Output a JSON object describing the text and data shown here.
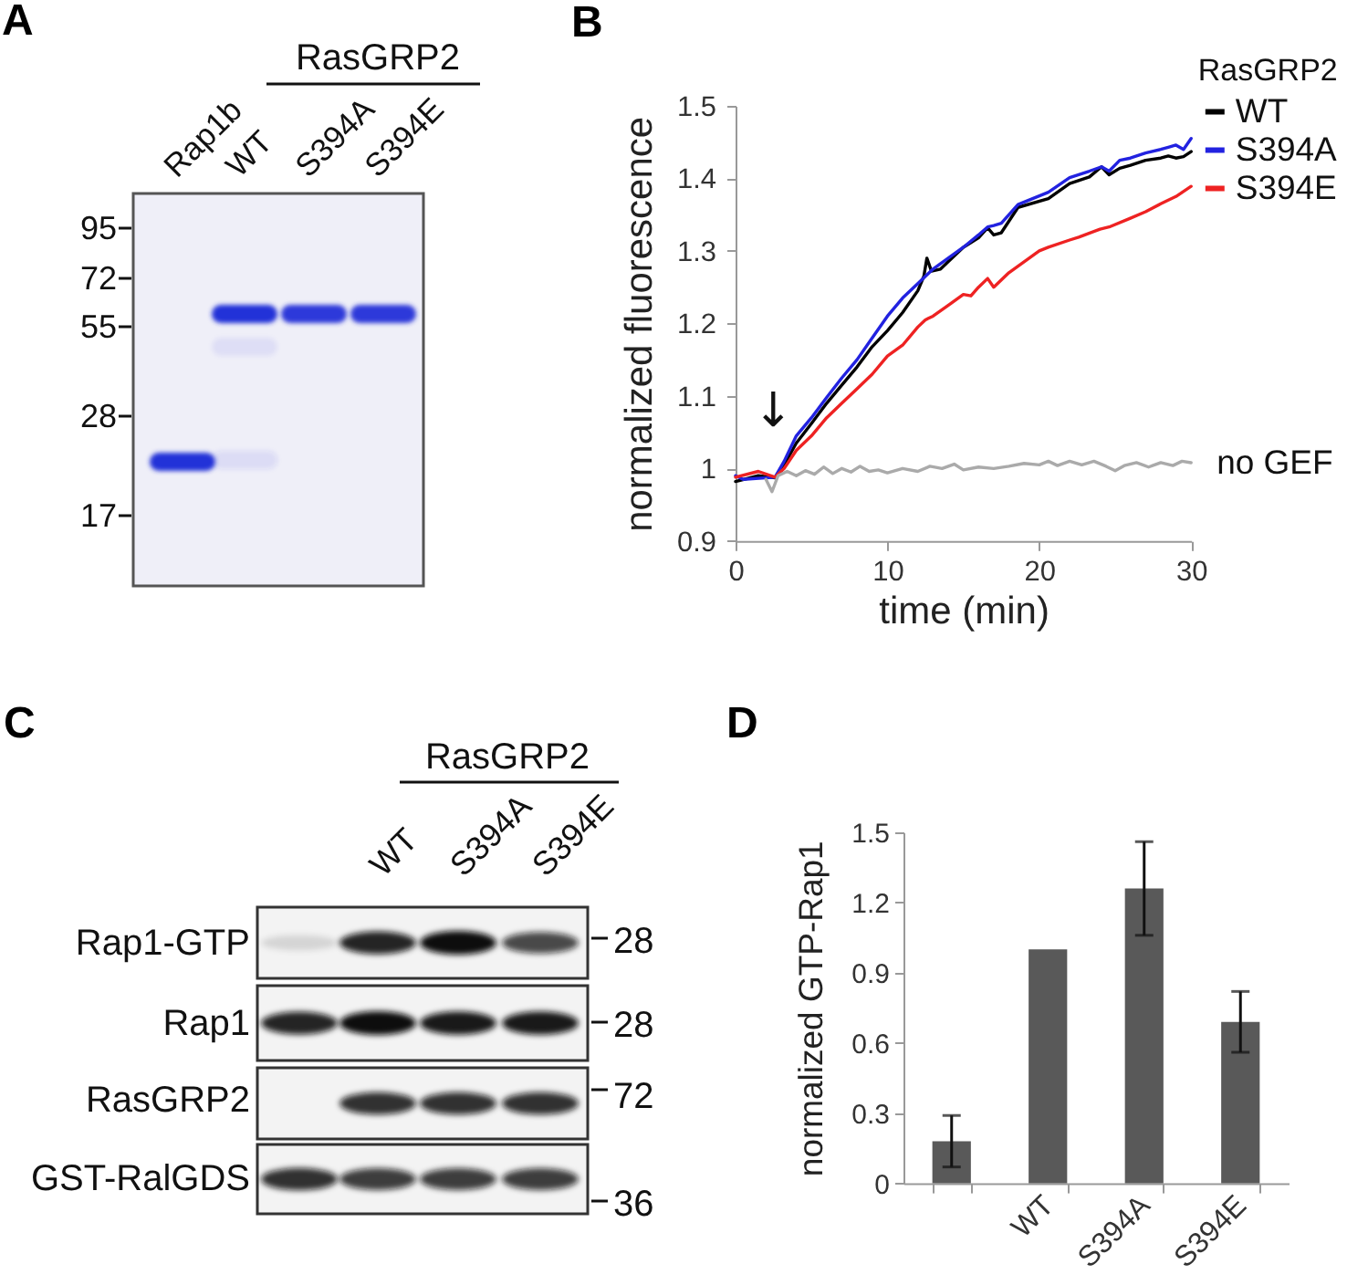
{
  "chart_data": [
    {
      "type": "other",
      "title": "A",
      "categories": [
        "Rap1b",
        "WT",
        "S394A",
        "S394E"
      ],
      "annotations": [
        "RasGRP2",
        "95",
        "72",
        "55",
        "28",
        "17"
      ]
    },
    {
      "type": "line",
      "title": "B",
      "xlabel": "time (min)",
      "ylabel": "normalized fluorescence",
      "legend_title": "RasGRP2",
      "legend": "top right",
      "xlim": [
        0,
        30
      ],
      "xticks": [
        0,
        10,
        20,
        30
      ],
      "ylim": [
        0.9,
        1.5
      ],
      "yticks": [
        0.9,
        1,
        1.1,
        1.2,
        1.3,
        1.4,
        1.5
      ],
      "series": [
        {
          "name": "WT",
          "color": "#000000",
          "x": [
            0,
            1.5,
            2.6,
            3.2,
            4,
            5,
            6,
            7,
            8,
            9,
            10,
            11,
            12,
            12.4,
            12.6,
            12.9,
            13.5,
            14,
            15,
            16,
            16.6,
            17,
            17.5,
            18.6,
            20.6,
            22,
            23.3,
            24.1,
            24.6,
            25.3,
            26,
            27,
            28,
            28.5,
            29,
            29.5,
            30
          ],
          "values": [
            0.982,
            0.99,
            0.987,
            1.005,
            1.035,
            1.062,
            1.09,
            1.115,
            1.14,
            1.168,
            1.19,
            1.215,
            1.245,
            1.265,
            1.29,
            1.272,
            1.275,
            1.285,
            1.305,
            1.318,
            1.332,
            1.322,
            1.325,
            1.36,
            1.372,
            1.393,
            1.402,
            1.416,
            1.405,
            1.414,
            1.418,
            1.425,
            1.428,
            1.431,
            1.428,
            1.43,
            1.437
          ]
        },
        {
          "name": "S394A",
          "color": "#2222e0",
          "x": [
            0,
            0.5,
            2.6,
            3.2,
            4,
            5,
            6,
            7,
            8,
            9,
            10,
            11,
            12,
            12.5,
            13,
            14,
            15,
            16,
            16.6,
            17,
            17.5,
            18.6,
            20.6,
            22,
            23.3,
            24.1,
            24.6,
            25.3,
            26,
            27,
            28,
            28.5,
            29,
            29.5,
            30
          ],
          "values": [
            0.99,
            0.985,
            0.988,
            1.01,
            1.045,
            1.07,
            1.098,
            1.125,
            1.15,
            1.18,
            1.21,
            1.235,
            1.255,
            1.265,
            1.275,
            1.29,
            1.305,
            1.322,
            1.333,
            1.335,
            1.338,
            1.364,
            1.381,
            1.401,
            1.41,
            1.416,
            1.41,
            1.425,
            1.428,
            1.435,
            1.44,
            1.443,
            1.446,
            1.44,
            1.455
          ]
        },
        {
          "name": "S394E",
          "color": "#ee2222",
          "x": [
            0,
            1.5,
            2.6,
            3.2,
            4,
            5,
            6,
            7,
            8,
            9,
            10,
            11,
            12,
            12.5,
            13,
            14,
            15,
            15.5,
            16,
            16.6,
            17,
            17.5,
            18,
            19,
            20,
            20.6,
            22,
            22.6,
            24,
            24.6,
            26,
            27,
            28,
            29,
            30
          ],
          "values": [
            0.988,
            0.996,
            0.988,
            1.0,
            1.025,
            1.045,
            1.07,
            1.09,
            1.11,
            1.13,
            1.155,
            1.17,
            1.195,
            1.205,
            1.21,
            1.225,
            1.24,
            1.238,
            1.25,
            1.262,
            1.25,
            1.26,
            1.27,
            1.285,
            1.3,
            1.305,
            1.315,
            1.319,
            1.33,
            1.333,
            1.345,
            1.354,
            1.365,
            1.375,
            1.389
          ]
        },
        {
          "name": "no GEF",
          "color": "#aaaaaa",
          "x": [
            2,
            2.4,
            2.8,
            3.4,
            4,
            4.6,
            5.2,
            5.8,
            6.4,
            7,
            7.6,
            8.2,
            8.8,
            9.4,
            10,
            11,
            12,
            12.8,
            13.6,
            14.4,
            15,
            16,
            17,
            18,
            19,
            20,
            20.6,
            21.2,
            22,
            22.8,
            23.6,
            24.4,
            25,
            25.6,
            26.4,
            27.2,
            28,
            28.8,
            29.4,
            30
          ],
          "values": [
            0.985,
            0.968,
            0.99,
            0.996,
            0.99,
            0.997,
            0.992,
            1.002,
            0.993,
            1.0,
            0.995,
            1.003,
            0.996,
            0.998,
            0.994,
            1.0,
            0.996,
            1.003,
            1.0,
            1.006,
            0.998,
            1.002,
            1.0,
            1.003,
            1.007,
            1.005,
            1.01,
            1.004,
            1.01,
            1.005,
            1.01,
            1.003,
            0.997,
            1.004,
            1.008,
            1.002,
            1.008,
            1.004,
            1.01,
            1.008
          ]
        }
      ],
      "annotations": [
        "↓"
      ]
    },
    {
      "type": "other",
      "title": "C",
      "categories": [
        null,
        "WT",
        "S394A",
        "S394E"
      ],
      "annotations": [
        "RasGRP2",
        "Rap1-GTP",
        "Rap1",
        "RasGRP2",
        "GST-RalGDS",
        "28",
        "28",
        "72",
        "36"
      ]
    },
    {
      "type": "bar",
      "title": "D",
      "ylabel": "normalized GTP-Rap1",
      "categories": [
        null,
        "WT",
        "S394A",
        "S394E"
      ],
      "values": [
        0.18,
        1.0,
        1.26,
        0.69
      ],
      "errors": [
        0.11,
        null,
        0.2,
        0.13
      ],
      "color": "#595959",
      "ylim": [
        0,
        1.5
      ],
      "yticks": [
        0,
        0.3,
        0.6,
        0.9,
        1.2,
        1.5
      ]
    }
  ]
}
